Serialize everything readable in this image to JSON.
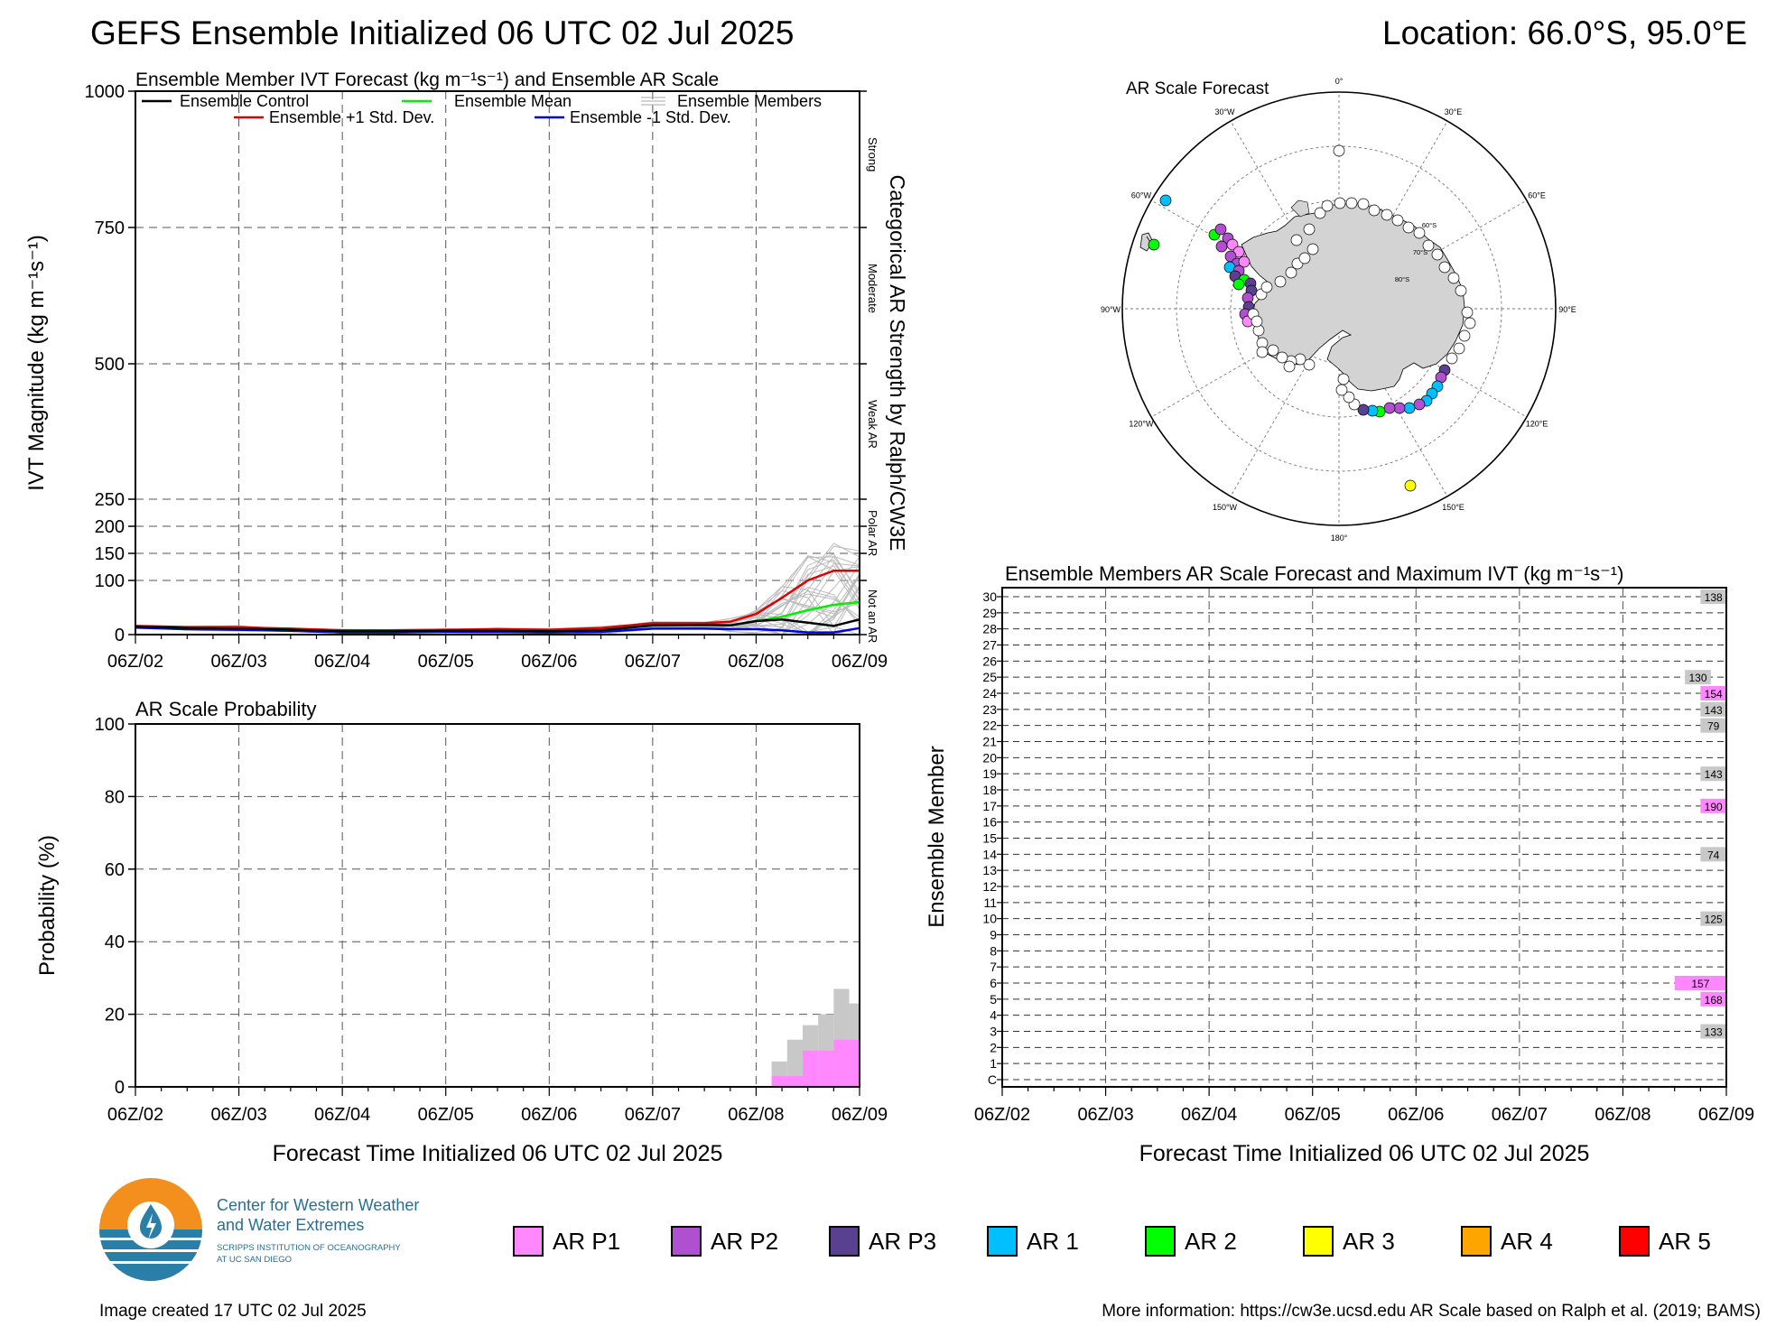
{
  "header": {
    "title": "GEFS Ensemble Initialized 06 UTC 02 Jul 2025",
    "location": "Location: 66.0°S, 95.0°E"
  },
  "time_axis": {
    "ticks": [
      "06Z/02",
      "06Z/03",
      "06Z/04",
      "06Z/05",
      "06Z/06",
      "06Z/07",
      "06Z/08",
      "06Z/09"
    ],
    "xlabel": "Forecast Time Initialized 06 UTC 02 Jul 2025"
  },
  "ivt_panel": {
    "title": "Ensemble Member IVT Forecast (kg m⁻¹s⁻¹) and Ensemble AR Scale",
    "ylabel": "IVT Magnitude (kg m⁻¹s⁻¹)",
    "right_label": "Categorical AR Strength by Ralph/CW3E",
    "categories": [
      "Strong",
      "Moderate",
      "Weak AR",
      "Polar AR",
      "Not an AR"
    ],
    "legend": {
      "control": "Ensemble Control",
      "mean": "Ensemble Mean",
      "members": "Ensemble Members",
      "plus_sd": "Ensemble +1 Std. Dev.",
      "minus_sd": "Ensemble -1 Std. Dev."
    }
  },
  "prob_panel": {
    "title": "AR Scale Probability",
    "ylabel": "Probability (%)"
  },
  "map_panel": {
    "title": "AR Scale Forecast",
    "lon_labels": [
      "0°",
      "30°E",
      "60°E",
      "90°E",
      "120°E",
      "150°E",
      "180°",
      "150°W",
      "120°W",
      "90°W",
      "60°W",
      "30°W"
    ],
    "lat_labels": [
      "60°S",
      "70°S",
      "80°S"
    ]
  },
  "member_panel": {
    "title": "Ensemble Members AR Scale Forecast and Maximum IVT (kg m⁻¹s⁻¹)",
    "ylabel": "Ensemble Member",
    "rows": [
      "C",
      "1",
      "2",
      "3",
      "4",
      "5",
      "6",
      "7",
      "8",
      "9",
      "10",
      "11",
      "12",
      "13",
      "14",
      "15",
      "16",
      "17",
      "18",
      "19",
      "20",
      "21",
      "22",
      "23",
      "24",
      "25",
      "26",
      "27",
      "28",
      "29",
      "30"
    ]
  },
  "legend": [
    {
      "label": "AR P1",
      "color": "#ff88ff"
    },
    {
      "label": "AR P2",
      "color": "#b050d0"
    },
    {
      "label": "AR P3",
      "color": "#5a4090"
    },
    {
      "label": "AR 1",
      "color": "#00bfff"
    },
    {
      "label": "AR 2",
      "color": "#00ff00"
    },
    {
      "label": "AR 3",
      "color": "#ffff00"
    },
    {
      "label": "AR 4",
      "color": "#ffa500"
    },
    {
      "label": "AR 5",
      "color": "#ff0000"
    }
  ],
  "logo": {
    "line1": "Center for Western Weather",
    "line2": "and Water Extremes",
    "line3": "SCRIPPS INSTITUTION OF OCEANOGRAPHY",
    "line4": "AT UC SAN DIEGO"
  },
  "footer": {
    "created": "Image created 17 UTC 02 Jul 2025",
    "info": "More information: https://cw3e.ucsd.edu AR Scale based on Ralph et al. (2019; BAMS)"
  },
  "colors": {
    "control": "#000000",
    "mean": "#00ee00",
    "members": "#bbbbbb",
    "plus_sd": "#dd0000",
    "minus_sd": "#0000dd",
    "gray_fill": "#c8c8c8",
    "pink_fill": "#ff88ff",
    "land": "#d3d3d3"
  },
  "chart_data": [
    {
      "type": "line",
      "panel": "ivt",
      "x_units": "forecast day (0 = 06Z/02, 7 = 06Z/09)",
      "y_units": "kg m-1 s-1",
      "ylim": [
        0,
        1000
      ],
      "y_axis_scale": "piecewise",
      "yticks": [
        0,
        100,
        150,
        200,
        250,
        500,
        750,
        1000
      ],
      "grid": true,
      "x": [
        0,
        0.5,
        1,
        1.25,
        1.5,
        2,
        2.5,
        3,
        3.5,
        4,
        4.5,
        5,
        5.5,
        5.75,
        6,
        6.25,
        6.5,
        6.75,
        7
      ],
      "series": [
        {
          "name": "Ensemble Control",
          "values": [
            15,
            12,
            11,
            10,
            9,
            6,
            6,
            7,
            7,
            6,
            8,
            17,
            18,
            17,
            25,
            28,
            22,
            16,
            28
          ]
        },
        {
          "name": "Ensemble Mean",
          "values": [
            15,
            12,
            11,
            10,
            9,
            6,
            6,
            7,
            7,
            6,
            8,
            17,
            18,
            17,
            25,
            33,
            45,
            55,
            60
          ]
        },
        {
          "name": "Ensemble +1 Std. Dev.",
          "values": [
            16,
            14,
            14,
            12,
            11,
            8,
            8,
            9,
            10,
            9,
            12,
            21,
            21,
            24,
            38,
            68,
            100,
            118,
            118
          ]
        },
        {
          "name": "Ensemble -1 Std. Dev.",
          "values": [
            13,
            10,
            9,
            8,
            7,
            4,
            4,
            5,
            5,
            4,
            5,
            11,
            11,
            10,
            10,
            8,
            4,
            4,
            12
          ]
        }
      ]
    },
    {
      "type": "area",
      "panel": "probability",
      "x_units": "forecast day",
      "ylim": [
        0,
        100
      ],
      "yticks": [
        0,
        20,
        40,
        60,
        80,
        100
      ],
      "grid": true,
      "x": [
        6.15,
        6.3,
        6.45,
        6.6,
        6.75,
        6.9,
        7
      ],
      "series": [
        {
          "name": "",
          "color": "gray",
          "values": [
            7,
            13,
            17,
            20,
            27,
            23,
            30
          ]
        },
        {
          "name": "",
          "color": "pink",
          "values": [
            3,
            3,
            10,
            10,
            13,
            13,
            13
          ]
        }
      ]
    },
    {
      "type": "table",
      "panel": "members",
      "x_units": "forecast day",
      "bars": [
        {
          "member": "30",
          "start": 6.75,
          "end": 7.0,
          "category": "none",
          "max_ivt": 138
        },
        {
          "member": "25",
          "start": 6.6,
          "end": 6.85,
          "category": "none",
          "max_ivt": 130
        },
        {
          "member": "24",
          "start": 6.75,
          "end": 7.0,
          "category": "AR P1",
          "max_ivt": 154
        },
        {
          "member": "23",
          "start": 6.75,
          "end": 7.0,
          "category": "none",
          "max_ivt": 143
        },
        {
          "member": "22",
          "start": 6.75,
          "end": 7.0,
          "category": "none",
          "max_ivt": 79
        },
        {
          "member": "19",
          "start": 6.75,
          "end": 7.0,
          "category": "none",
          "max_ivt": 143
        },
        {
          "member": "17",
          "start": 6.75,
          "end": 7.0,
          "category": "AR P1",
          "max_ivt": 190
        },
        {
          "member": "14",
          "start": 6.75,
          "end": 7.0,
          "category": "none",
          "max_ivt": 74
        },
        {
          "member": "10",
          "start": 6.75,
          "end": 7.0,
          "category": "none",
          "max_ivt": 125
        },
        {
          "member": "6",
          "start": 6.5,
          "end": 7.0,
          "category": "AR P1",
          "max_ivt": 157
        },
        {
          "member": "5",
          "start": 6.75,
          "end": 7.0,
          "category": "AR P1",
          "max_ivt": 168
        },
        {
          "member": "3",
          "start": 6.75,
          "end": 7.0,
          "category": "none",
          "max_ivt": 133
        }
      ]
    }
  ]
}
